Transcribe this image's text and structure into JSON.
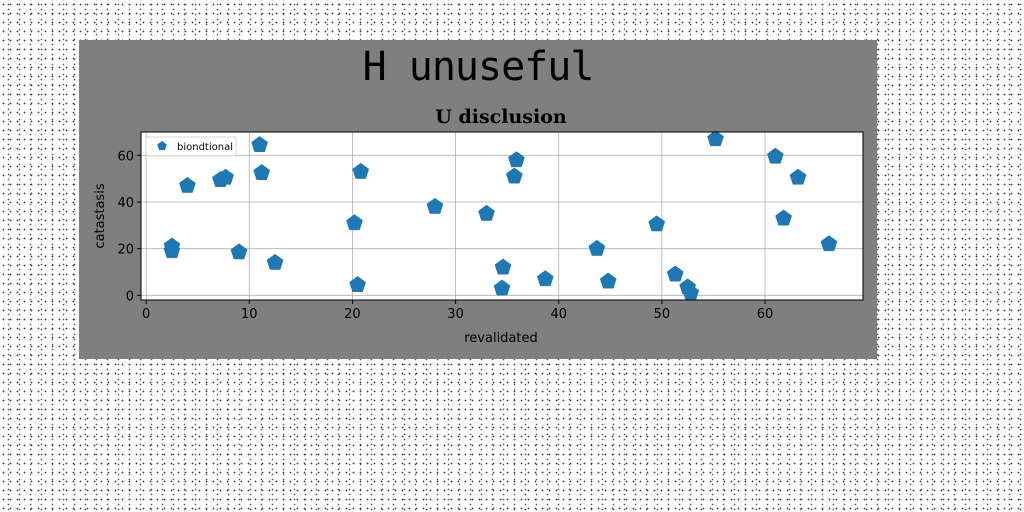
{
  "figure": {
    "suptitle": "H unuseful"
  },
  "chart_data": {
    "type": "scatter",
    "title": "U disclusion",
    "xlabel": "revalidated",
    "ylabel": "catastasis",
    "xlim": [
      -0.5,
      69.5
    ],
    "ylim": [
      -2,
      70
    ],
    "xticks": [
      0,
      10,
      20,
      30,
      40,
      50,
      60
    ],
    "yticks": [
      0,
      20,
      40,
      60
    ],
    "grid": true,
    "legend_position": "top-left",
    "marker": "pentagon",
    "series": [
      {
        "name": "biondtional",
        "color": "#1f77b4",
        "points": [
          [
            2.5,
            21
          ],
          [
            2.5,
            19
          ],
          [
            4,
            47
          ],
          [
            7.2,
            49.5
          ],
          [
            7.7,
            50.5
          ],
          [
            9,
            18.5
          ],
          [
            11,
            64.5
          ],
          [
            11.2,
            52.5
          ],
          [
            12.5,
            14
          ],
          [
            20.2,
            31
          ],
          [
            20.5,
            4.5
          ],
          [
            20.8,
            53
          ],
          [
            28,
            38
          ],
          [
            33,
            35
          ],
          [
            34.5,
            3
          ],
          [
            34.6,
            12
          ],
          [
            35.7,
            51
          ],
          [
            35.9,
            58
          ],
          [
            38.7,
            7
          ],
          [
            43.7,
            20
          ],
          [
            44.8,
            6
          ],
          [
            49.5,
            30.5
          ],
          [
            51.3,
            9
          ],
          [
            52.5,
            3.5
          ],
          [
            52.8,
            1
          ],
          [
            55.2,
            67
          ],
          [
            61,
            59.5
          ],
          [
            61.8,
            33
          ],
          [
            63.2,
            50.5
          ],
          [
            66.2,
            22
          ]
        ]
      }
    ]
  }
}
